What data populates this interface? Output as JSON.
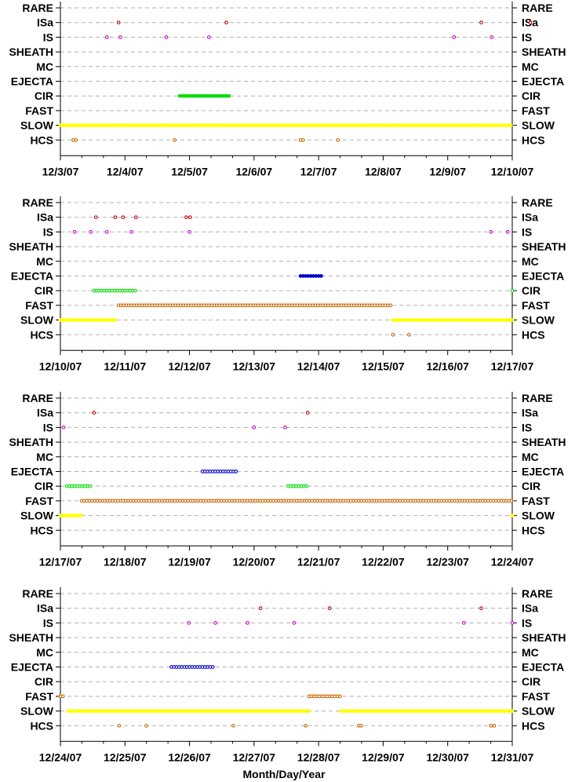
{
  "chart_data": {
    "type": "scatter",
    "categories": [
      "RARE",
      "ISa",
      "IS",
      "SHEATH",
      "MC",
      "EJECTA",
      "CIR",
      "FAST",
      "SLOW",
      "HCS"
    ],
    "xlabel": "Month/Day/Year",
    "ylabel": "",
    "colors": {
      "ISa": "#cc0000",
      "IS": "#cc00cc",
      "EJECTA": "#0000cc",
      "CIR": "#00dd00",
      "FAST": "#cc6600",
      "SLOW": "#ffff00",
      "HCS": "#cc6600"
    },
    "panels": [
      {
        "tick_labels": [
          "12/3/07",
          "12/4/07",
          "12/5/07",
          "12/6/07",
          "12/7/07",
          "12/8/07",
          "12/9/07",
          "12/10/07"
        ],
        "points": [
          {
            "category": "ISa",
            "x": [
              0.9,
              2.57,
              6.52,
              7.28
            ]
          },
          {
            "category": "IS",
            "x": [
              0.72,
              0.93,
              1.64,
              2.3,
              6.1,
              6.68
            ]
          },
          {
            "category": "HCS",
            "x": [
              0.2,
              0.24,
              1.77,
              3.72,
              3.76,
              4.3
            ]
          }
        ],
        "segments": [
          {
            "category": "CIR",
            "x_start": 1.85,
            "x_end": 2.63
          },
          {
            "category": "SLOW",
            "x_start": 0.0,
            "x_end": 7.0
          }
        ]
      },
      {
        "tick_labels": [
          "12/10/07",
          "12/11/07",
          "12/12/07",
          "12/13/07",
          "12/14/07",
          "12/15/07",
          "12/16/07",
          "12/17/07"
        ],
        "points": [
          {
            "category": "ISa",
            "x": [
              0.55,
              0.85,
              0.97,
              1.17,
              1.95,
              2.01
            ]
          },
          {
            "category": "IS",
            "x": [
              0.22,
              0.47,
              0.72,
              1.1,
              2.0,
              6.67,
              6.93
            ]
          },
          {
            "category": "HCS",
            "x": [
              5.15,
              5.4
            ]
          },
          {
            "category": "CIR",
            "x": [
              7.0
            ]
          }
        ],
        "segments": [
          {
            "category": "EJECTA",
            "x_start": 3.72,
            "x_end": 4.05
          },
          {
            "category": "CIR",
            "x_start": 0.52,
            "x_end": 1.18
          },
          {
            "category": "FAST",
            "x_start": 0.9,
            "x_end": 5.15
          },
          {
            "category": "SLOW",
            "x_start": 0.0,
            "x_end": 0.88
          },
          {
            "category": "SLOW",
            "x_start": 5.15,
            "x_end": 7.0
          }
        ]
      },
      {
        "tick_labels": [
          "12/17/07",
          "12/18/07",
          "12/19/07",
          "12/20/07",
          "12/21/07",
          "12/22/07",
          "12/23/07",
          "12/24/07"
        ],
        "points": [
          {
            "category": "ISa",
            "x": [
              0.52,
              3.83
            ]
          },
          {
            "category": "IS",
            "x": [
              0.05,
              3.0,
              3.48
            ]
          },
          {
            "category": "SLOW",
            "x": [
              7.0
            ]
          }
        ],
        "segments": [
          {
            "category": "EJECTA",
            "x_start": 2.2,
            "x_end": 2.75
          },
          {
            "category": "CIR",
            "x_start": 0.1,
            "x_end": 0.5
          },
          {
            "category": "CIR",
            "x_start": 3.53,
            "x_end": 3.82
          },
          {
            "category": "FAST",
            "x_start": 0.33,
            "x_end": 7.0
          },
          {
            "category": "SLOW",
            "x_start": 0.0,
            "x_end": 0.33
          }
        ]
      },
      {
        "tick_labels": [
          "12/24/07",
          "12/25/07",
          "12/26/07",
          "12/27/07",
          "12/28/07",
          "12/29/07",
          "12/30/07",
          "12/31/07"
        ],
        "points": [
          {
            "category": "ISa",
            "x": [
              3.1,
              4.17,
              6.52
            ]
          },
          {
            "category": "IS",
            "x": [
              1.99,
              2.4,
              2.9,
              3.62,
              6.25,
              7.0
            ]
          },
          {
            "category": "HCS",
            "x": [
              0.91,
              1.33,
              2.68,
              3.8,
              4.62,
              4.66,
              6.67,
              6.72
            ]
          }
        ],
        "segments": [
          {
            "category": "EJECTA",
            "x_start": 1.72,
            "x_end": 2.38
          },
          {
            "category": "FAST",
            "x_start": 0.0,
            "x_end": 0.08
          },
          {
            "category": "FAST",
            "x_start": 3.85,
            "x_end": 4.35
          },
          {
            "category": "SLOW",
            "x_start": 0.12,
            "x_end": 3.85
          },
          {
            "category": "SLOW",
            "x_start": 4.35,
            "x_end": 7.0
          }
        ]
      }
    ]
  }
}
